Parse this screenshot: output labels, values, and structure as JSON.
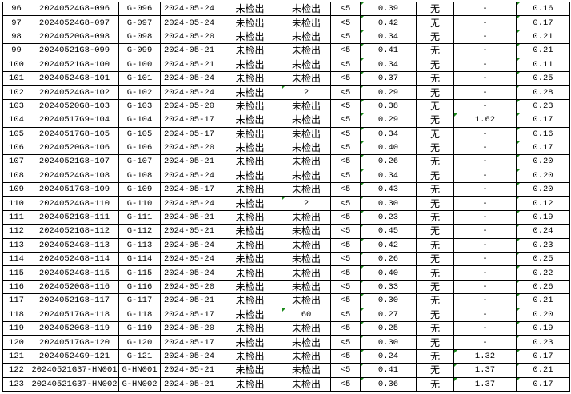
{
  "colors": {
    "grid": "#000000",
    "error_marker": "#1a8a1a"
  },
  "rows": [
    [
      "96",
      "20240524G8-096",
      "G-096",
      "2024-05-24",
      "未检出",
      "未检出",
      "<5",
      "0.39",
      "无",
      "-",
      "0.16"
    ],
    [
      "97",
      "20240524G8-097",
      "G-097",
      "2024-05-24",
      "未检出",
      "未检出",
      "<5",
      "0.42",
      "无",
      "-",
      "0.17"
    ],
    [
      "98",
      "20240520G8-098",
      "G-098",
      "2024-05-20",
      "未检出",
      "未检出",
      "<5",
      "0.34",
      "无",
      "-",
      "0.21"
    ],
    [
      "99",
      "20240521G8-099",
      "G-099",
      "2024-05-21",
      "未检出",
      "未检出",
      "<5",
      "0.41",
      "无",
      "-",
      "0.21"
    ],
    [
      "100",
      "20240521G8-100",
      "G-100",
      "2024-05-21",
      "未检出",
      "未检出",
      "<5",
      "0.34",
      "无",
      "-",
      "0.11"
    ],
    [
      "101",
      "20240524G8-101",
      "G-101",
      "2024-05-24",
      "未检出",
      "未检出",
      "<5",
      "0.37",
      "无",
      "-",
      "0.25"
    ],
    [
      "102",
      "20240524G8-102",
      "G-102",
      "2024-05-24",
      "未检出",
      "2",
      "<5",
      "0.29",
      "无",
      "-",
      "0.28"
    ],
    [
      "103",
      "20240520G8-103",
      "G-103",
      "2024-05-20",
      "未检出",
      "未检出",
      "<5",
      "0.38",
      "无",
      "-",
      "0.23"
    ],
    [
      "104",
      "20240517G9-104",
      "G-104",
      "2024-05-17",
      "未检出",
      "未检出",
      "<5",
      "0.29",
      "无",
      "1.62",
      "0.17"
    ],
    [
      "105",
      "20240517G8-105",
      "G-105",
      "2024-05-17",
      "未检出",
      "未检出",
      "<5",
      "0.34",
      "无",
      "-",
      "0.16"
    ],
    [
      "106",
      "20240520G8-106",
      "G-106",
      "2024-05-20",
      "未检出",
      "未检出",
      "<5",
      "0.40",
      "无",
      "-",
      "0.17"
    ],
    [
      "107",
      "20240521G8-107",
      "G-107",
      "2024-05-21",
      "未检出",
      "未检出",
      "<5",
      "0.26",
      "无",
      "-",
      "0.20"
    ],
    [
      "108",
      "20240524G8-108",
      "G-108",
      "2024-05-24",
      "未检出",
      "未检出",
      "<5",
      "0.34",
      "无",
      "-",
      "0.20"
    ],
    [
      "109",
      "20240517G8-109",
      "G-109",
      "2024-05-17",
      "未检出",
      "未检出",
      "<5",
      "0.43",
      "无",
      "-",
      "0.20"
    ],
    [
      "110",
      "20240524G8-110",
      "G-110",
      "2024-05-24",
      "未检出",
      "2",
      "<5",
      "0.30",
      "无",
      "-",
      "0.12"
    ],
    [
      "111",
      "20240521G8-111",
      "G-111",
      "2024-05-21",
      "未检出",
      "未检出",
      "<5",
      "0.23",
      "无",
      "-",
      "0.19"
    ],
    [
      "112",
      "20240521G8-112",
      "G-112",
      "2024-05-21",
      "未检出",
      "未检出",
      "<5",
      "0.45",
      "无",
      "-",
      "0.24"
    ],
    [
      "113",
      "20240524G8-113",
      "G-113",
      "2024-05-24",
      "未检出",
      "未检出",
      "<5",
      "0.42",
      "无",
      "-",
      "0.23"
    ],
    [
      "114",
      "20240524G8-114",
      "G-114",
      "2024-05-24",
      "未检出",
      "未检出",
      "<5",
      "0.26",
      "无",
      "-",
      "0.25"
    ],
    [
      "115",
      "20240524G8-115",
      "G-115",
      "2024-05-24",
      "未检出",
      "未检出",
      "<5",
      "0.40",
      "无",
      "-",
      "0.22"
    ],
    [
      "116",
      "20240520G8-116",
      "G-116",
      "2024-05-20",
      "未检出",
      "未检出",
      "<5",
      "0.33",
      "无",
      "-",
      "0.26"
    ],
    [
      "117",
      "20240521G8-117",
      "G-117",
      "2024-05-21",
      "未检出",
      "未检出",
      "<5",
      "0.30",
      "无",
      "-",
      "0.21"
    ],
    [
      "118",
      "20240517G8-118",
      "G-118",
      "2024-05-17",
      "未检出",
      "60",
      "<5",
      "0.27",
      "无",
      "-",
      "0.20"
    ],
    [
      "119",
      "20240520G8-119",
      "G-119",
      "2024-05-20",
      "未检出",
      "未检出",
      "<5",
      "0.25",
      "无",
      "-",
      "0.19"
    ],
    [
      "120",
      "20240517G8-120",
      "G-120",
      "2024-05-17",
      "未检出",
      "未检出",
      "<5",
      "0.30",
      "无",
      "-",
      "0.23"
    ],
    [
      "121",
      "20240524G9-121",
      "G-121",
      "2024-05-24",
      "未检出",
      "未检出",
      "<5",
      "0.24",
      "无",
      "1.32",
      "0.17"
    ],
    [
      "122",
      "20240521G37-HN001",
      "G-HN001",
      "2024-05-21",
      "未检出",
      "未检出",
      "<5",
      "0.41",
      "无",
      "1.37",
      "0.21"
    ],
    [
      "123",
      "20240521G37-HN002",
      "G-HN002",
      "2024-05-21",
      "未检出",
      "未检出",
      "<5",
      "0.36",
      "无",
      "1.37",
      "0.17"
    ]
  ]
}
